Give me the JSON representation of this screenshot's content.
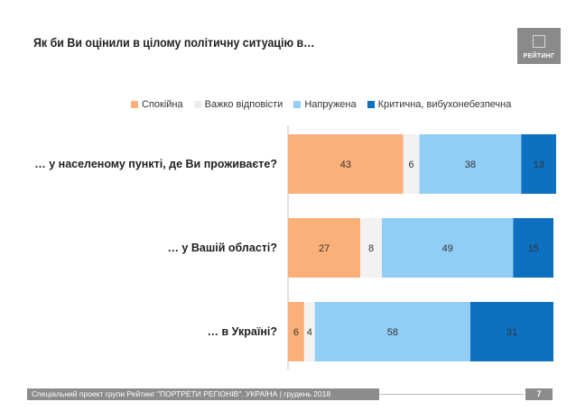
{
  "title": "Як би Ви оцінили в цілому політичну ситуацію в…",
  "logo_text": "РЕЙТИНГ",
  "footer_text": "Спеціальний проект групи Рейтинг \"ПОРТРЕТИ РЕГІОНІВ\". УКРАЇНА | грудень 2018",
  "page_number": "7",
  "chart_data": {
    "type": "bar",
    "orientation": "horizontal",
    "stacked": true,
    "categories": [
      "… у населеному пункті, де Ви проживаєте?",
      "… у Вашій області?",
      "… в Україні?"
    ],
    "series": [
      {
        "name": "Спокійна",
        "color": "#FBB07A",
        "values": [
          43,
          27,
          6
        ]
      },
      {
        "name": "Важко відповісти",
        "color": "#F2F2F2",
        "values": [
          6,
          8,
          4
        ]
      },
      {
        "name": "Напружена",
        "color": "#92CDF6",
        "values": [
          38,
          49,
          58
        ]
      },
      {
        "name": "Критична, вибухонебезпечна",
        "color": "#0E70C0",
        "values": [
          13,
          15,
          31
        ]
      }
    ],
    "xlim": [
      0,
      100
    ],
    "legend_position": "top",
    "grid": false,
    "data_labels": true
  }
}
